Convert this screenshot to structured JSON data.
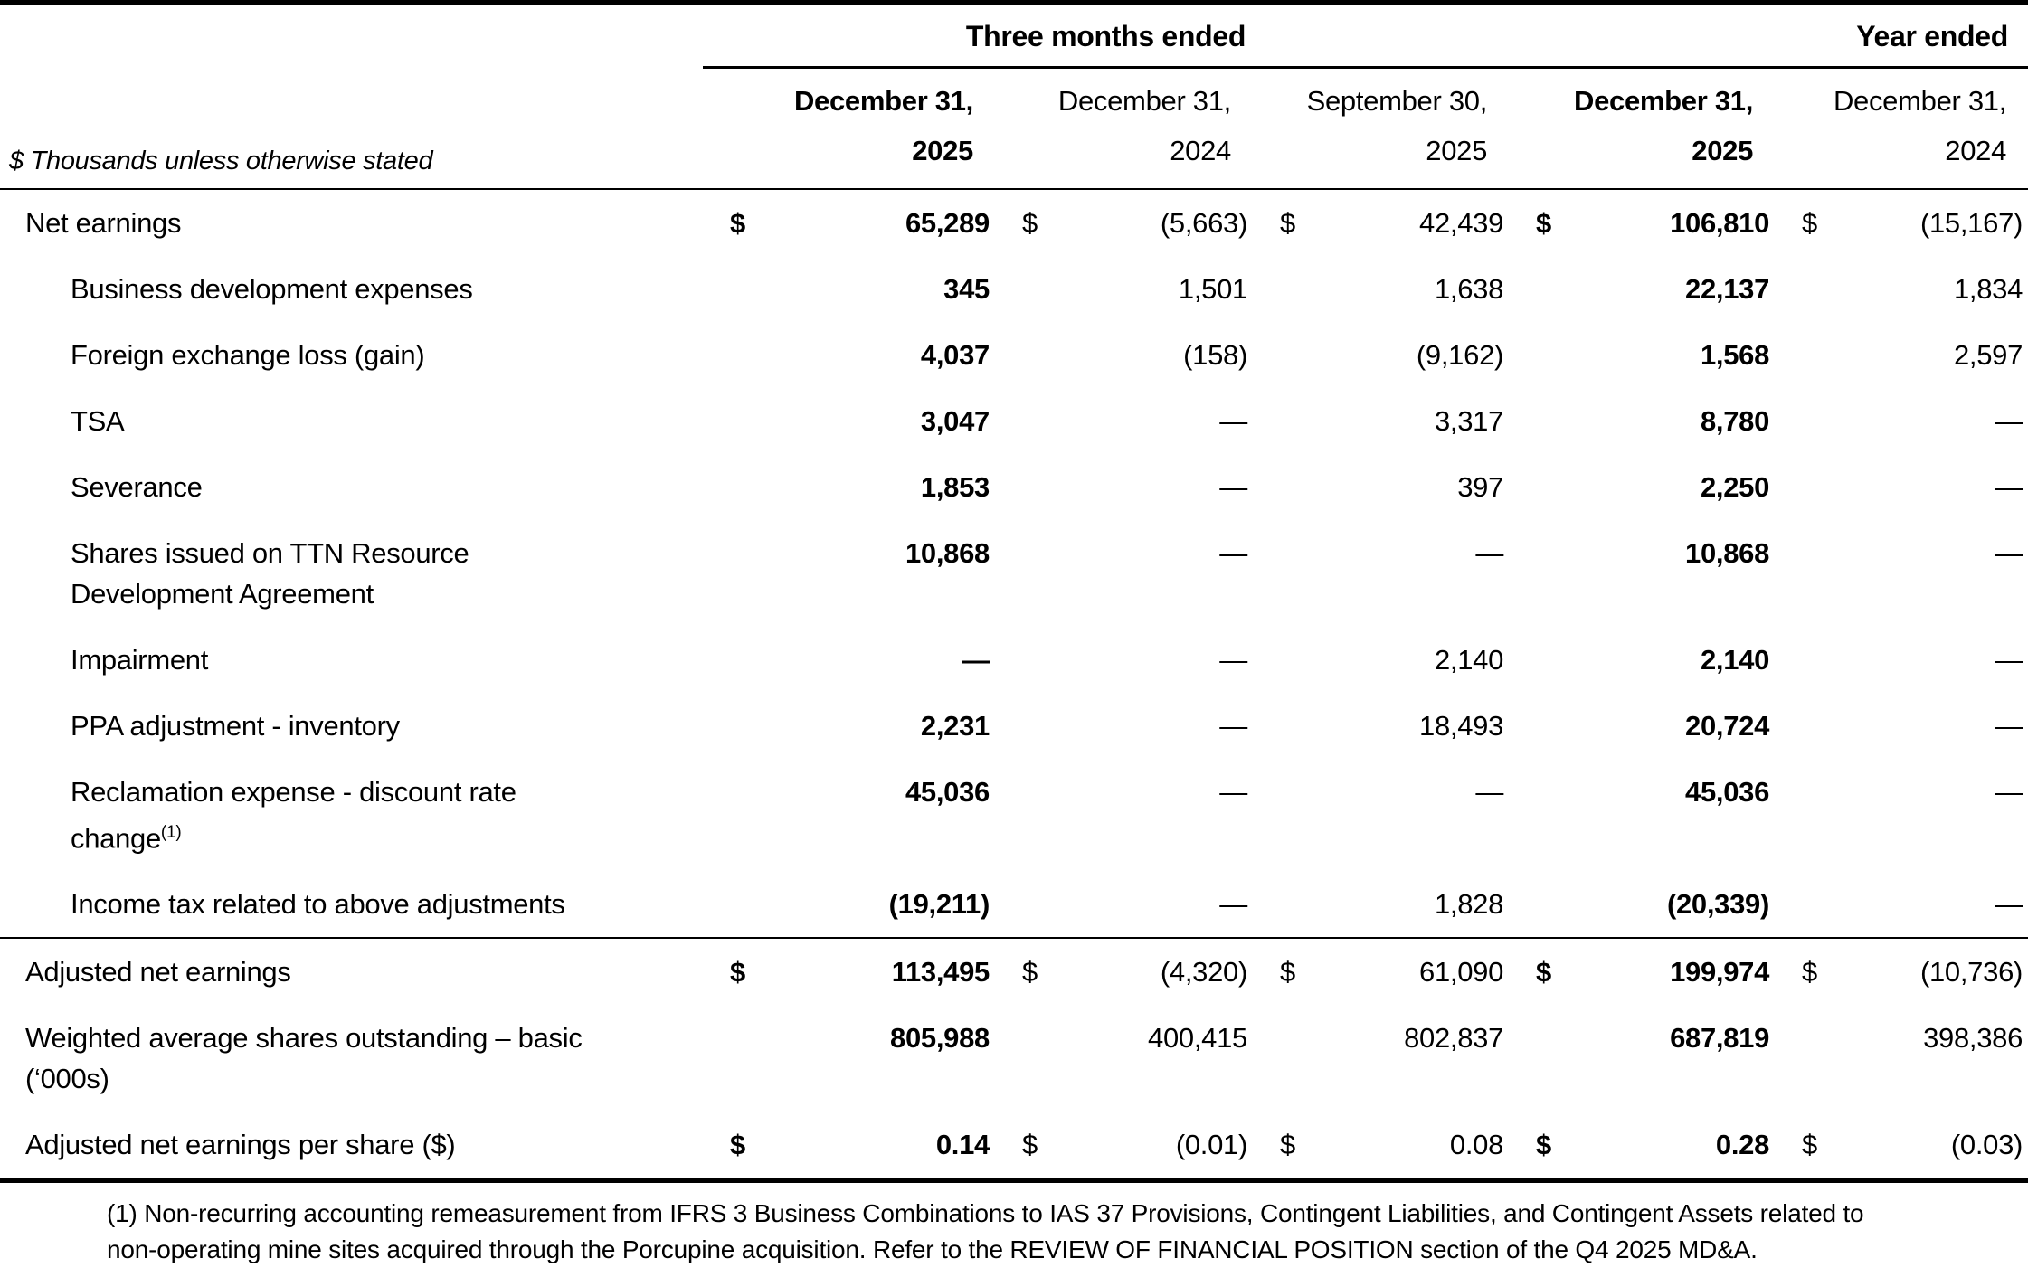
{
  "table": {
    "subtitle": "$ Thousands unless otherwise stated",
    "group_headers": {
      "three_months": "Three months ended",
      "year": "Year ended"
    },
    "column_headers": [
      {
        "line1": "December 31,",
        "line2": "2025",
        "bold": true
      },
      {
        "line1": "December 31,",
        "line2": "2024",
        "bold": false
      },
      {
        "line1": "September 30,",
        "line2": "2025",
        "bold": false
      },
      {
        "line1": "December 31,",
        "line2": "2025",
        "bold": true
      },
      {
        "line1": "December 31,",
        "line2": "2024",
        "bold": false
      }
    ],
    "bold_column_indexes": [
      0,
      3
    ],
    "rows": [
      {
        "label": "Net earnings",
        "indent": false,
        "cells": [
          {
            "cur": "$",
            "val": "65,289"
          },
          {
            "cur": "$",
            "val": "(5,663)"
          },
          {
            "cur": "$",
            "val": "42,439"
          },
          {
            "cur": "$",
            "val": "106,810"
          },
          {
            "cur": "$",
            "val": "(15,167)"
          }
        ]
      },
      {
        "label": "Business development expenses",
        "indent": true,
        "cells": [
          {
            "cur": "",
            "val": "345"
          },
          {
            "cur": "",
            "val": "1,501"
          },
          {
            "cur": "",
            "val": "1,638"
          },
          {
            "cur": "",
            "val": "22,137"
          },
          {
            "cur": "",
            "val": "1,834"
          }
        ]
      },
      {
        "label": "Foreign exchange loss (gain)",
        "indent": true,
        "cells": [
          {
            "cur": "",
            "val": "4,037"
          },
          {
            "cur": "",
            "val": "(158)"
          },
          {
            "cur": "",
            "val": "(9,162)"
          },
          {
            "cur": "",
            "val": "1,568"
          },
          {
            "cur": "",
            "val": "2,597"
          }
        ]
      },
      {
        "label": "TSA",
        "indent": true,
        "cells": [
          {
            "cur": "",
            "val": "3,047"
          },
          {
            "cur": "",
            "val": "—"
          },
          {
            "cur": "",
            "val": "3,317"
          },
          {
            "cur": "",
            "val": "8,780"
          },
          {
            "cur": "",
            "val": "—"
          }
        ]
      },
      {
        "label": "Severance",
        "indent": true,
        "cells": [
          {
            "cur": "",
            "val": "1,853"
          },
          {
            "cur": "",
            "val": "—"
          },
          {
            "cur": "",
            "val": "397"
          },
          {
            "cur": "",
            "val": "2,250"
          },
          {
            "cur": "",
            "val": "—"
          }
        ]
      },
      {
        "label": "Shares issued on TTN Resource\nDevelopment Agreement",
        "indent": true,
        "cells": [
          {
            "cur": "",
            "val": "10,868"
          },
          {
            "cur": "",
            "val": "—"
          },
          {
            "cur": "",
            "val": "—"
          },
          {
            "cur": "",
            "val": "10,868"
          },
          {
            "cur": "",
            "val": "—"
          }
        ]
      },
      {
        "label": "Impairment",
        "indent": true,
        "cells": [
          {
            "cur": "",
            "val": "—"
          },
          {
            "cur": "",
            "val": "—"
          },
          {
            "cur": "",
            "val": "2,140"
          },
          {
            "cur": "",
            "val": "2,140"
          },
          {
            "cur": "",
            "val": "—"
          }
        ]
      },
      {
        "label": "PPA adjustment - inventory",
        "indent": true,
        "cells": [
          {
            "cur": "",
            "val": "2,231"
          },
          {
            "cur": "",
            "val": "—"
          },
          {
            "cur": "",
            "val": "18,493"
          },
          {
            "cur": "",
            "val": "20,724"
          },
          {
            "cur": "",
            "val": "—"
          }
        ]
      },
      {
        "label": "Reclamation expense - discount rate\nchange",
        "sup": "(1)",
        "indent": true,
        "cells": [
          {
            "cur": "",
            "val": "45,036"
          },
          {
            "cur": "",
            "val": "—"
          },
          {
            "cur": "",
            "val": "—"
          },
          {
            "cur": "",
            "val": "45,036"
          },
          {
            "cur": "",
            "val": "—"
          }
        ]
      },
      {
        "label": "Income tax related to above adjustments",
        "indent": true,
        "rule_below": true,
        "cells": [
          {
            "cur": "",
            "val": "(19,211)"
          },
          {
            "cur": "",
            "val": "—"
          },
          {
            "cur": "",
            "val": "1,828"
          },
          {
            "cur": "",
            "val": "(20,339)"
          },
          {
            "cur": "",
            "val": "—"
          }
        ]
      },
      {
        "label": "Adjusted net earnings",
        "indent": false,
        "cells": [
          {
            "cur": "$",
            "val": "113,495"
          },
          {
            "cur": "$",
            "val": "(4,320)"
          },
          {
            "cur": "$",
            "val": "61,090"
          },
          {
            "cur": "$",
            "val": "199,974"
          },
          {
            "cur": "$",
            "val": "(10,736)"
          }
        ]
      },
      {
        "label": "Weighted average shares outstanding – basic\n(‘000s)",
        "indent": false,
        "cells": [
          {
            "cur": "",
            "val": "805,988"
          },
          {
            "cur": "",
            "val": "400,415"
          },
          {
            "cur": "",
            "val": "802,837"
          },
          {
            "cur": "",
            "val": "687,819"
          },
          {
            "cur": "",
            "val": "398,386"
          }
        ]
      },
      {
        "label": "Adjusted net earnings per share ($)",
        "indent": false,
        "cells": [
          {
            "cur": "$",
            "val": "0.14"
          },
          {
            "cur": "$",
            "val": "(0.01)"
          },
          {
            "cur": "$",
            "val": "0.08"
          },
          {
            "cur": "$",
            "val": "0.28"
          },
          {
            "cur": "$",
            "val": "(0.03)"
          }
        ]
      }
    ],
    "footnote": "(1) Non-recurring accounting remeasurement from IFRS 3 Business Combinations to IAS 37 Provisions, Contingent Liabilities, and Contingent Assets related to non-operating mine sites acquired through the Porcupine acquisition. Refer to the REVIEW OF FINANCIAL POSITION section of the Q4 2025 MD&A.",
    "colors": {
      "text": "#000000",
      "background": "#ffffff",
      "rule": "#000000"
    }
  }
}
